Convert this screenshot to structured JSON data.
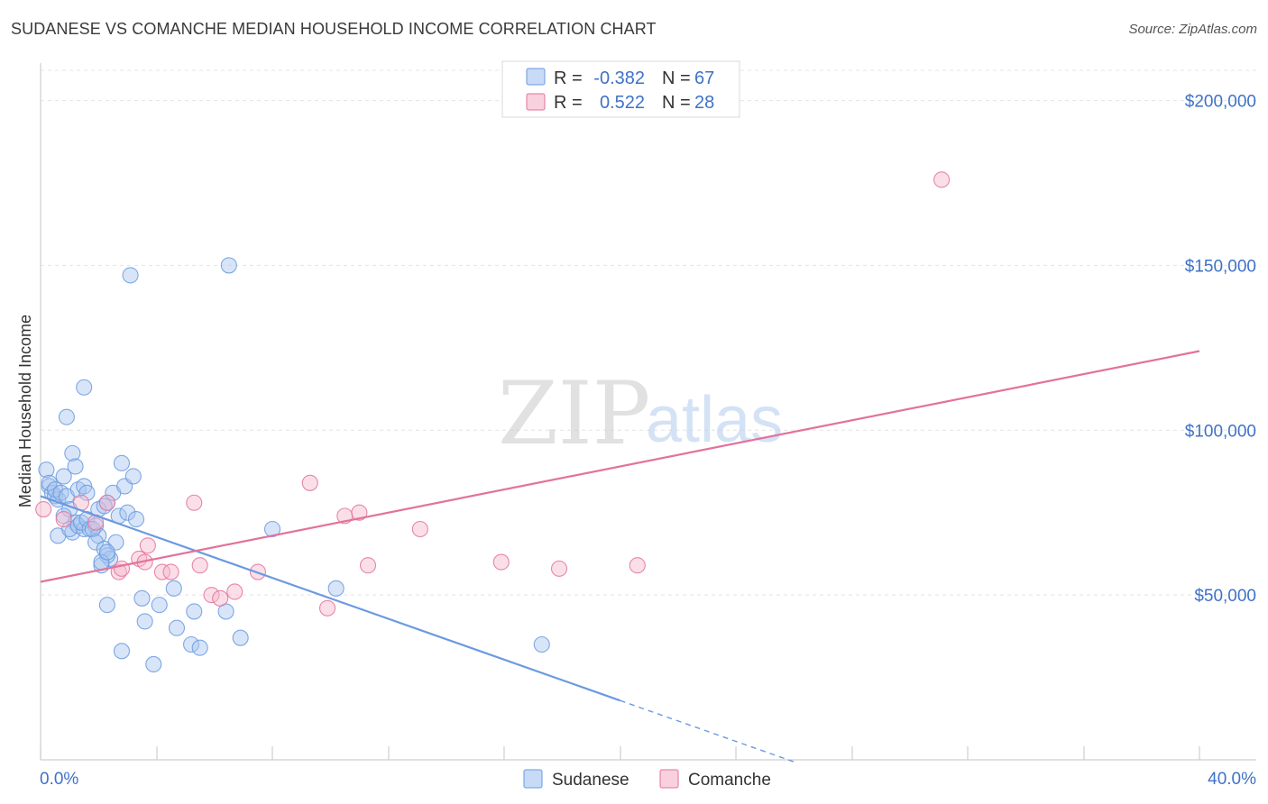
{
  "header": {
    "title": "SUDANESE VS COMANCHE MEDIAN HOUSEHOLD INCOME CORRELATION CHART",
    "source": "Source: ZipAtlas.com"
  },
  "watermark": {
    "zip": "ZIP",
    "atlas": "atlas"
  },
  "chart_data": {
    "type": "scatter",
    "title": "SUDANESE VS COMANCHE MEDIAN HOUSEHOLD INCOME CORRELATION CHART",
    "xlabel": "",
    "ylabel": "Median Household Income",
    "xlim": [
      0,
      40
    ],
    "ylim": [
      0,
      210000
    ],
    "x_tick_labels": [
      "0.0%",
      "40.0%"
    ],
    "y_ticks": [
      50000,
      100000,
      150000,
      200000
    ],
    "y_tick_labels": [
      "$50,000",
      "$100,000",
      "$150,000",
      "$200,000"
    ],
    "grid": true,
    "legend": {
      "placement": "top-center",
      "rows": [
        {
          "r_label": "R =",
          "r_value": "-0.382",
          "n_label": "N =",
          "n_value": "67"
        },
        {
          "r_label": "R =",
          "r_value": "0.522",
          "n_label": "N =",
          "n_value": "28"
        }
      ]
    },
    "series": [
      {
        "name": "Sudanese",
        "color": "#6a9ae0",
        "fill": "#a9c6f0",
        "trend": {
          "x0": 0,
          "y0": 80000,
          "x1": 20,
          "y1": 18000,
          "dash_to_x": 26,
          "dash_to_y": -600
        },
        "points": [
          [
            0.2,
            88000
          ],
          [
            0.3,
            83000
          ],
          [
            0.4,
            81000
          ],
          [
            0.5,
            80000
          ],
          [
            0.6,
            79000
          ],
          [
            0.8,
            86000
          ],
          [
            0.3,
            84000
          ],
          [
            0.5,
            82000
          ],
          [
            0.7,
            81000
          ],
          [
            0.9,
            80000
          ],
          [
            1.0,
            76000
          ],
          [
            0.8,
            74000
          ],
          [
            1.2,
            72000
          ],
          [
            1.1,
            69000
          ],
          [
            0.6,
            68000
          ],
          [
            1.0,
            70000
          ],
          [
            1.3,
            71000
          ],
          [
            1.5,
            70000
          ],
          [
            1.4,
            72000
          ],
          [
            1.6,
            73000
          ],
          [
            1.7,
            70000
          ],
          [
            1.9,
            71000
          ],
          [
            2.0,
            68000
          ],
          [
            1.8,
            70000
          ],
          [
            1.1,
            93000
          ],
          [
            1.2,
            89000
          ],
          [
            1.5,
            113000
          ],
          [
            0.9,
            104000
          ],
          [
            1.3,
            82000
          ],
          [
            1.5,
            83000
          ],
          [
            1.6,
            81000
          ],
          [
            2.3,
            78000
          ],
          [
            2.0,
            76000
          ],
          [
            2.2,
            77000
          ],
          [
            2.5,
            81000
          ],
          [
            2.7,
            74000
          ],
          [
            2.8,
            90000
          ],
          [
            2.9,
            83000
          ],
          [
            3.0,
            75000
          ],
          [
            3.2,
            86000
          ],
          [
            3.3,
            73000
          ],
          [
            1.9,
            66000
          ],
          [
            2.2,
            64000
          ],
          [
            2.4,
            61000
          ],
          [
            2.6,
            66000
          ],
          [
            2.3,
            62000
          ],
          [
            2.1,
            59000
          ],
          [
            2.1,
            60000
          ],
          [
            2.3,
            63000
          ],
          [
            3.1,
            147000
          ],
          [
            6.5,
            150000
          ],
          [
            4.6,
            52000
          ],
          [
            3.5,
            49000
          ],
          [
            2.3,
            47000
          ],
          [
            4.1,
            47000
          ],
          [
            5.3,
            45000
          ],
          [
            6.4,
            45000
          ],
          [
            3.6,
            42000
          ],
          [
            4.7,
            40000
          ],
          [
            5.2,
            35000
          ],
          [
            5.5,
            34000
          ],
          [
            6.9,
            37000
          ],
          [
            2.8,
            33000
          ],
          [
            3.9,
            29000
          ],
          [
            8.0,
            70000
          ],
          [
            10.2,
            52000
          ],
          [
            17.3,
            35000
          ]
        ]
      },
      {
        "name": "Comanche",
        "color": "#e3729b",
        "fill": "#f6b8cc",
        "trend": {
          "x0": 0,
          "y0": 54000,
          "x1": 40,
          "y1": 124000
        },
        "points": [
          [
            0.1,
            76000
          ],
          [
            0.8,
            73000
          ],
          [
            1.4,
            78000
          ],
          [
            1.9,
            72000
          ],
          [
            2.3,
            78000
          ],
          [
            2.7,
            57000
          ],
          [
            2.8,
            58000
          ],
          [
            3.4,
            61000
          ],
          [
            3.6,
            60000
          ],
          [
            3.7,
            65000
          ],
          [
            4.2,
            57000
          ],
          [
            4.5,
            57000
          ],
          [
            5.3,
            78000
          ],
          [
            5.5,
            59000
          ],
          [
            5.9,
            50000
          ],
          [
            6.2,
            49000
          ],
          [
            6.7,
            51000
          ],
          [
            7.5,
            57000
          ],
          [
            9.3,
            84000
          ],
          [
            9.9,
            46000
          ],
          [
            10.5,
            74000
          ],
          [
            11.0,
            75000
          ],
          [
            11.3,
            59000
          ],
          [
            13.1,
            70000
          ],
          [
            15.9,
            60000
          ],
          [
            17.9,
            58000
          ],
          [
            20.6,
            59000
          ],
          [
            31.1,
            176000
          ]
        ]
      }
    ]
  }
}
